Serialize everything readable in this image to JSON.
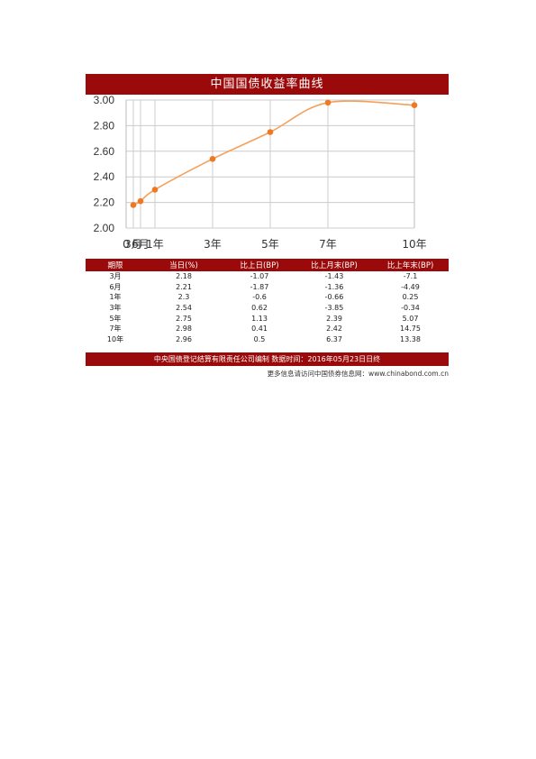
{
  "header": {
    "title": "中国国债收益率曲线"
  },
  "chart_data": {
    "type": "line",
    "categories": [
      "3月",
      "6月",
      "1年",
      "3年",
      "5年",
      "7年",
      "10年"
    ],
    "x": [
      0.25,
      0.5,
      1,
      3,
      5,
      7,
      10
    ],
    "x_axis_ticks": [
      {
        "x": 0,
        "label": "0"
      },
      {
        "x": 0.25,
        "label": "3月"
      },
      {
        "x": 0.5,
        "label": "6月"
      },
      {
        "x": 1,
        "label": "1年"
      },
      {
        "x": 3,
        "label": "3年"
      },
      {
        "x": 5,
        "label": "5年"
      },
      {
        "x": 7,
        "label": "7年"
      },
      {
        "x": 10,
        "label": "10年"
      }
    ],
    "values": [
      2.18,
      2.21,
      2.3,
      2.54,
      2.75,
      2.98,
      2.96
    ],
    "y_ticks": [
      "2.00",
      "2.20",
      "2.40",
      "2.60",
      "2.80",
      "3.00"
    ],
    "ylim": [
      2.0,
      3.0
    ],
    "grid": true,
    "line_color": "#f5a05a",
    "marker_color": "#f07820"
  },
  "table": {
    "headers": [
      "期限",
      "当日(%)",
      "比上日(BP)",
      "比上月末(BP)",
      "比上年末(BP)"
    ],
    "rows": [
      [
        "3月",
        "2.18",
        "-1.07",
        "-1.43",
        "-7.1"
      ],
      [
        "6月",
        "2.21",
        "-1.87",
        "-1.36",
        "-4.49"
      ],
      [
        "1年",
        "2.3",
        "-0.6",
        "-0.66",
        "0.25"
      ],
      [
        "3年",
        "2.54",
        "0.62",
        "-3.85",
        "-0.34"
      ],
      [
        "5年",
        "2.75",
        "1.13",
        "2.39",
        "5.07"
      ],
      [
        "7年",
        "2.98",
        "0.41",
        "2.42",
        "14.75"
      ],
      [
        "10年",
        "2.96",
        "0.5",
        "6.37",
        "13.38"
      ]
    ]
  },
  "footer": {
    "text": "中央国债登记结算有限责任公司编制  数据时间：2016年05月23日日终",
    "more": "更多信息请访问中国债券信息网：www.chinabond.com.cn"
  },
  "colors": {
    "brand_red": "#9b0a0a",
    "grid": "#cccccc"
  }
}
